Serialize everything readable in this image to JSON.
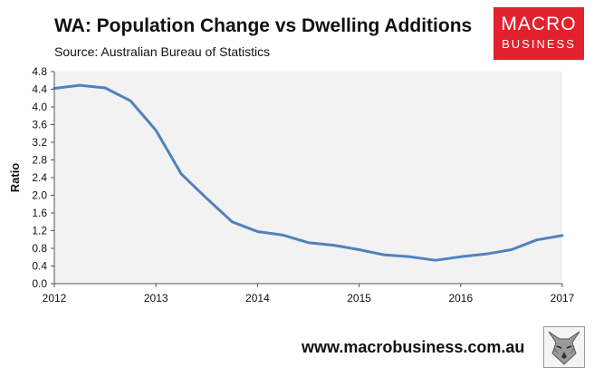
{
  "title": "WA: Population Change vs Dwelling Additions",
  "subtitle": "Source: Australian Bureau of Statistics",
  "logo": {
    "line1": "MACRO",
    "line2": "BUSINESS",
    "color": "#e3212e"
  },
  "website": "www.macrobusiness.com.au",
  "chart_data": {
    "type": "line",
    "title": "WA: Population Change vs Dwelling Additions",
    "xlabel": "",
    "ylabel": "Ratio",
    "xlim": [
      2012,
      2017
    ],
    "ylim": [
      0,
      4.8
    ],
    "x_ticks": [
      "2012",
      "2013",
      "2014",
      "2015",
      "2016",
      "2017"
    ],
    "y_ticks": [
      "0.0",
      "0.4",
      "0.8",
      "1.2",
      "1.6",
      "2.0",
      "2.4",
      "2.8",
      "3.2",
      "3.6",
      "4.0",
      "4.4",
      "4.8"
    ],
    "grid": false,
    "plot_background": "#f2f2f2",
    "line_color": "#4f81bd",
    "series": [
      {
        "x": [
          2012.0,
          2012.25,
          2012.5,
          2012.75,
          2013.0,
          2013.25,
          2013.5,
          2013.75,
          2014.0,
          2014.25,
          2014.5,
          2014.75,
          2015.0,
          2015.25,
          2015.5,
          2015.75,
          2016.0,
          2016.25,
          2016.5,
          2016.75,
          2017.0
        ],
        "values": [
          4.42,
          4.49,
          4.43,
          4.14,
          3.47,
          2.48,
          1.93,
          1.4,
          1.18,
          1.1,
          0.93,
          0.87,
          0.77,
          0.65,
          0.61,
          0.53,
          0.61,
          0.67,
          0.77,
          0.99,
          1.09
        ]
      }
    ]
  }
}
